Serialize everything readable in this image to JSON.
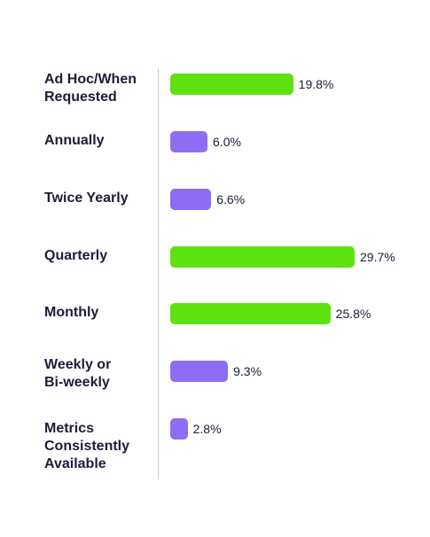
{
  "chart_data": {
    "type": "bar",
    "orientation": "horizontal",
    "categories": [
      "Ad Hoc/When Requested",
      "Annually",
      "Twice Yearly",
      "Quarterly",
      "Monthly",
      "Weekly or Bi-weekly",
      "Metrics Consistently Available"
    ],
    "values": [
      19.8,
      6.0,
      6.6,
      29.7,
      25.8,
      9.3,
      2.8
    ],
    "value_labels": [
      "19.8%",
      "6.0%",
      "6.6%",
      "29.7%",
      "25.8%",
      "9.3%",
      "2.8%"
    ],
    "bar_colors": [
      "#5fe00f",
      "#8f6cf4",
      "#8f6cf4",
      "#5fe00f",
      "#5fe00f",
      "#8f6cf4",
      "#8f6cf4"
    ],
    "title": "",
    "xlabel": "",
    "ylabel": "",
    "xlim": [
      0,
      29.7
    ],
    "grid": false,
    "legend": "none"
  }
}
